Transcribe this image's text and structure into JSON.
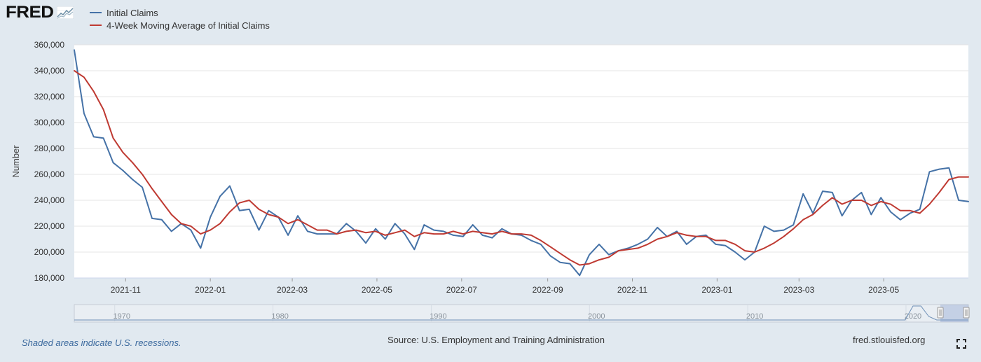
{
  "brand": {
    "logo_text": "FRED",
    "logo_icon": "line-chart-icon"
  },
  "footer": {
    "recession_note": "Shaded areas indicate U.S. recessions.",
    "source": "Source: U.S. Employment and Training Administration",
    "site": "fred.stlouisfed.org",
    "fullscreen_icon": "fullscreen-icon"
  },
  "navigator": {
    "year_labels": [
      "1970",
      "1980",
      "1990",
      "2000",
      "2010",
      "2020"
    ]
  },
  "colors": {
    "background": "#e1e9f0",
    "initial_claims": "#4572a7",
    "moving_average": "#bf3a32",
    "grid": "#e4e4e4"
  },
  "chart_data": {
    "type": "line",
    "ylabel": "Number",
    "ylim": [
      180000,
      360000
    ],
    "y_ticks": [
      180000,
      200000,
      220000,
      240000,
      260000,
      280000,
      300000,
      320000,
      340000,
      360000
    ],
    "y_tick_labels": [
      "180,000",
      "200,000",
      "220,000",
      "240,000",
      "260,000",
      "280,000",
      "300,000",
      "320,000",
      "340,000",
      "360,000"
    ],
    "x_tick_labels": [
      "2021-11",
      "2022-01",
      "2022-03",
      "2022-05",
      "2022-07",
      "2022-09",
      "2022-11",
      "2023-01",
      "2023-03",
      "2023-05"
    ],
    "xlim": [
      "2021-09-25",
      "2023-07-01"
    ],
    "x": [
      "2021-09-25",
      "2021-10-02",
      "2021-10-09",
      "2021-10-16",
      "2021-10-23",
      "2021-10-30",
      "2021-11-06",
      "2021-11-13",
      "2021-11-20",
      "2021-11-27",
      "2021-12-04",
      "2021-12-11",
      "2021-12-18",
      "2021-12-25",
      "2022-01-01",
      "2022-01-08",
      "2022-01-15",
      "2022-01-22",
      "2022-01-29",
      "2022-02-05",
      "2022-02-12",
      "2022-02-19",
      "2022-02-26",
      "2022-03-05",
      "2022-03-12",
      "2022-03-19",
      "2022-03-26",
      "2022-04-02",
      "2022-04-09",
      "2022-04-16",
      "2022-04-23",
      "2022-04-30",
      "2022-05-07",
      "2022-05-14",
      "2022-05-21",
      "2022-05-28",
      "2022-06-04",
      "2022-06-11",
      "2022-06-18",
      "2022-06-25",
      "2022-07-02",
      "2022-07-09",
      "2022-07-16",
      "2022-07-23",
      "2022-07-30",
      "2022-08-06",
      "2022-08-13",
      "2022-08-20",
      "2022-08-27",
      "2022-09-03",
      "2022-09-10",
      "2022-09-17",
      "2022-09-24",
      "2022-10-01",
      "2022-10-08",
      "2022-10-15",
      "2022-10-22",
      "2022-10-29",
      "2022-11-05",
      "2022-11-12",
      "2022-11-19",
      "2022-11-26",
      "2022-12-03",
      "2022-12-10",
      "2022-12-17",
      "2022-12-24",
      "2022-12-31",
      "2023-01-07",
      "2023-01-14",
      "2023-01-21",
      "2023-01-28",
      "2023-02-04",
      "2023-02-11",
      "2023-02-18",
      "2023-02-25",
      "2023-03-04",
      "2023-03-11",
      "2023-03-18",
      "2023-03-25",
      "2023-04-01",
      "2023-04-08",
      "2023-04-15",
      "2023-04-22",
      "2023-04-29",
      "2023-05-06",
      "2023-05-13",
      "2023-05-20",
      "2023-05-27",
      "2023-06-03",
      "2023-06-10",
      "2023-06-17",
      "2023-06-24",
      "2023-07-01"
    ],
    "series": [
      {
        "name": "Initial Claims",
        "color": "#4572a7",
        "values": [
          356000,
          307000,
          289000,
          288000,
          269000,
          263000,
          256000,
          250000,
          226000,
          225000,
          216000,
          222000,
          217000,
          203000,
          227000,
          243000,
          251000,
          232000,
          233000,
          217000,
          232000,
          227000,
          213000,
          228000,
          216000,
          214000,
          214000,
          214000,
          222000,
          216000,
          207000,
          218000,
          210000,
          222000,
          214000,
          202000,
          221000,
          217000,
          216000,
          213000,
          212000,
          221000,
          213000,
          211000,
          218000,
          214000,
          213000,
          209000,
          206000,
          197000,
          192000,
          191000,
          182000,
          198000,
          206000,
          198000,
          201000,
          203000,
          206000,
          210000,
          219000,
          212000,
          216000,
          206000,
          212000,
          213000,
          206000,
          205000,
          200000,
          194000,
          200000,
          220000,
          216000,
          217000,
          221000,
          245000,
          230000,
          247000,
          246000,
          228000,
          240000,
          246000,
          229000,
          242000,
          231000,
          225000,
          230000,
          233000,
          262000,
          264000,
          265000,
          240000,
          239000
        ]
      },
      {
        "name": "4-Week Moving Average of Initial Claims",
        "color": "#bf3a32",
        "values": [
          340000,
          335000,
          324000,
          310000,
          288000,
          277000,
          269000,
          260000,
          249000,
          239000,
          229000,
          222000,
          220000,
          214000,
          217000,
          222000,
          231000,
          238000,
          240000,
          233000,
          229000,
          227000,
          222000,
          225000,
          221000,
          217000,
          217000,
          214000,
          216000,
          217000,
          215000,
          216000,
          213000,
          215000,
          217000,
          212000,
          215000,
          214000,
          214000,
          216000,
          214000,
          216000,
          215000,
          214000,
          216000,
          214000,
          214000,
          213000,
          209000,
          204000,
          199000,
          194000,
          190000,
          191000,
          194000,
          196000,
          201000,
          202000,
          203000,
          206000,
          210000,
          212000,
          215000,
          213000,
          212000,
          212000,
          209000,
          209000,
          206000,
          201000,
          200000,
          203000,
          207000,
          212000,
          218000,
          225000,
          229000,
          236000,
          242000,
          237000,
          240000,
          240000,
          236000,
          239000,
          237000,
          232000,
          232000,
          230000,
          237000,
          246000,
          256000,
          258000,
          258000
        ]
      }
    ]
  }
}
